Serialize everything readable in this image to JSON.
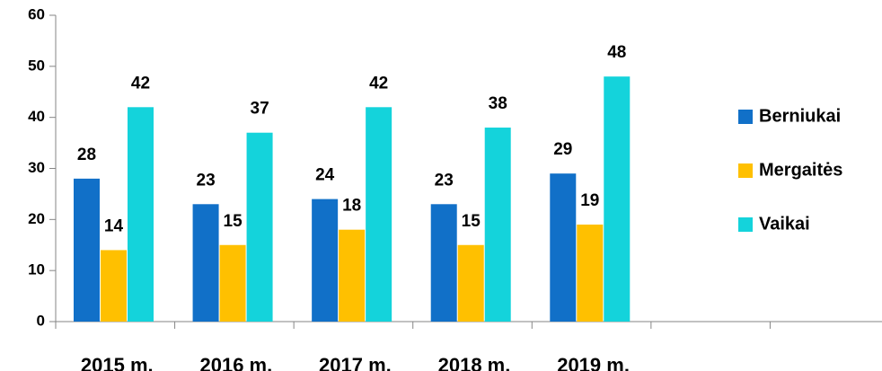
{
  "chart_data": {
    "type": "bar",
    "categories": [
      "2015 m.",
      "2016 m.",
      "2017 m.",
      "2018 m.",
      "2019 m.",
      null,
      null
    ],
    "series": [
      {
        "name": "Berniukai",
        "color": "#1170c8",
        "values": [
          28,
          23,
          24,
          23,
          29,
          null,
          null
        ]
      },
      {
        "name": "Mergaitės",
        "color": "#ffc000",
        "values": [
          14,
          15,
          18,
          15,
          19,
          null,
          null
        ]
      },
      {
        "name": "Vaikai",
        "color": "#14d3db",
        "values": [
          42,
          37,
          42,
          38,
          48,
          null,
          null
        ]
      }
    ],
    "ylim": [
      0,
      60
    ],
    "yticks": [
      0,
      10,
      20,
      30,
      40,
      50,
      60
    ],
    "legend": "right",
    "grid": false
  }
}
